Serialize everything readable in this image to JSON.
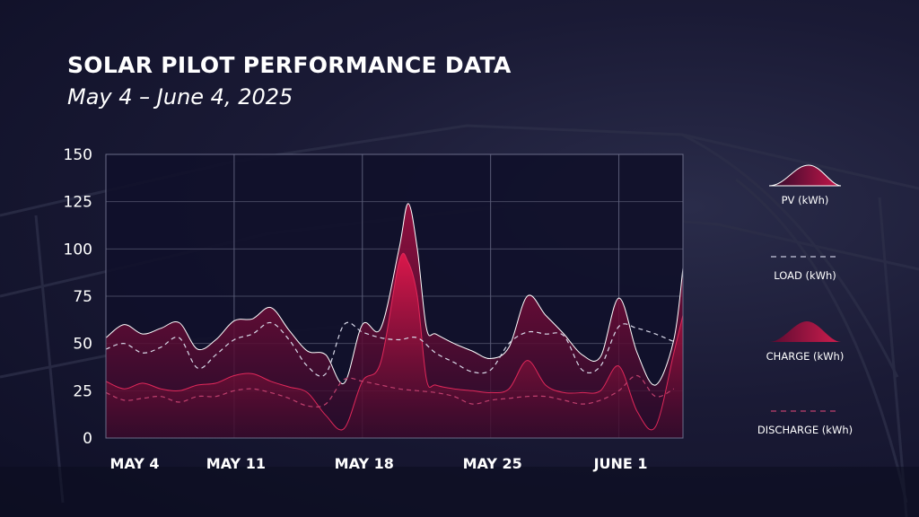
{
  "header": {
    "title": "SOLAR PILOT PERFORMANCE DATA",
    "subtitle": "May 4 – June 4, 2025"
  },
  "colors": {
    "pv_fill": "#8c0f3a",
    "charge": "#d01e4e",
    "discharge": "#c0406e",
    "load": "#d8d8e8",
    "plot_bg": "#10102a",
    "grid": "#5a5c78"
  },
  "legend": [
    {
      "label": "PV (kWh)",
      "icon": "pv-area-swatch"
    },
    {
      "label": "LOAD (kWh)",
      "icon": "load-dashed-line"
    },
    {
      "label": "CHARGE (kWh)",
      "icon": "charge-area-swatch"
    },
    {
      "label": "DISCHARGE  (kWh)",
      "icon": "discharge-dashed-line"
    }
  ],
  "chart_data": {
    "type": "area",
    "title": "SOLAR PILOT PERFORMANCE DATA",
    "subtitle": "May 4 – June 4, 2025",
    "xlabel": "",
    "ylabel": "",
    "ylim": [
      0,
      150
    ],
    "xlim": [
      0,
      31.5
    ],
    "grid": true,
    "legend_position": "right",
    "x_ticks": [
      {
        "label": "MAY 4",
        "x": 0
      },
      {
        "label": "MAY 11",
        "x": 7
      },
      {
        "label": "MAY 18",
        "x": 14
      },
      {
        "label": "MAY 25",
        "x": 21
      },
      {
        "label": "JUNE 1",
        "x": 28
      }
    ],
    "y_ticks": [
      0,
      25,
      50,
      75,
      100,
      125,
      150
    ],
    "series": [
      {
        "name": "PV (kWh)",
        "style": "area",
        "x": [
          0,
          1,
          2,
          3,
          4,
          5,
          6,
          7,
          8,
          9,
          10,
          11,
          12,
          13,
          14,
          15,
          16,
          16.5,
          17,
          17.5,
          18,
          19,
          20,
          21,
          22,
          23,
          24,
          25,
          26,
          27,
          28,
          29,
          30,
          31,
          31.5
        ],
        "values": [
          53,
          60,
          55,
          58,
          61,
          47,
          52,
          62,
          63,
          69,
          57,
          46,
          44,
          29,
          60,
          58,
          100,
          124,
          100,
          58,
          55,
          50,
          46,
          42,
          48,
          75,
          65,
          55,
          44,
          43,
          74,
          45,
          28,
          52,
          90
        ]
      },
      {
        "name": "LOAD (kWh)",
        "style": "dashed-line",
        "x": [
          0,
          1,
          2,
          3,
          4,
          5,
          6,
          7,
          8,
          9,
          10,
          11,
          12,
          13,
          14,
          15,
          16,
          17,
          18,
          19,
          20,
          21,
          22,
          23,
          24,
          25,
          26,
          27,
          28,
          29,
          30,
          31
        ],
        "values": [
          47,
          50,
          45,
          48,
          53,
          37,
          44,
          52,
          55,
          61,
          52,
          38,
          34,
          60,
          56,
          53,
          52,
          53,
          45,
          40,
          35,
          36,
          50,
          56,
          55,
          54,
          36,
          38,
          59,
          58,
          55,
          51
        ]
      },
      {
        "name": "CHARGE (kWh)",
        "style": "area",
        "x": [
          0,
          1,
          2,
          3,
          4,
          5,
          6,
          7,
          8,
          9,
          10,
          11,
          12,
          13,
          14,
          15,
          16,
          16.5,
          17,
          17.5,
          18,
          19,
          20,
          21,
          22,
          23,
          24,
          25,
          26,
          27,
          28,
          29,
          30,
          31,
          31.5
        ],
        "values": [
          30,
          26,
          29,
          26,
          25,
          28,
          29,
          33,
          34,
          30,
          27,
          24,
          12,
          5,
          30,
          40,
          93,
          93,
          75,
          31,
          28,
          26,
          25,
          24,
          26,
          41,
          28,
          24,
          24,
          25,
          38,
          14,
          6,
          45,
          65
        ]
      },
      {
        "name": "DISCHARGE  (kWh)",
        "style": "dashed-line",
        "x": [
          0,
          1,
          2,
          3,
          4,
          5,
          6,
          7,
          8,
          9,
          10,
          11,
          12,
          13,
          14,
          15,
          16,
          17,
          18,
          19,
          20,
          21,
          22,
          23,
          24,
          25,
          26,
          27,
          28,
          29,
          30,
          31
        ],
        "values": [
          24,
          20,
          21,
          22,
          19,
          22,
          22,
          25,
          26,
          24,
          21,
          17,
          18,
          31,
          30,
          28,
          26,
          25,
          24,
          22,
          18,
          20,
          21,
          22,
          22,
          20,
          18,
          20,
          25,
          33,
          22,
          26
        ]
      }
    ]
  }
}
